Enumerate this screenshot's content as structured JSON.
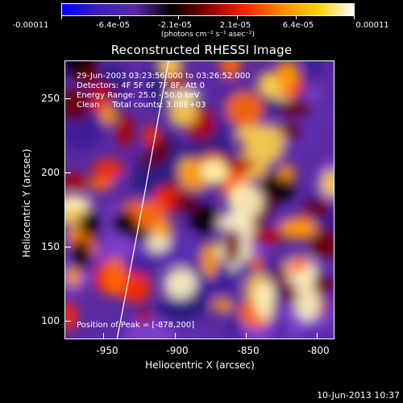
{
  "colorbar": {
    "tick_labels": [
      "-0.00011",
      "-6.4e-05",
      "-2.1e-05",
      "2.1e-05",
      "6.4e-05",
      "0.00011"
    ],
    "units": "(photons cm⁻² s⁻¹ asec⁻²)"
  },
  "title": "Reconstructed RHESSI Image",
  "info": {
    "time_range": "29-Jun-2003 03:23:56.000 to 03:26:52.000",
    "detectors": "Detectors: 4F 5F 6F 7F 8F, Att 0",
    "energy_range": "Energy Range: 25.0 - 50.0 keV",
    "clean_counts": "Clean     Total counts: 3.08E+03"
  },
  "peak_label": "Position of Peak = [-878,200]",
  "axes": {
    "x_title": "Heliocentric X (arcsec)",
    "y_title": "Heliocentric Y (arcsec)",
    "x_ticks": [
      "-950",
      "-900",
      "-850",
      "-800"
    ],
    "y_ticks": [
      "250",
      "200",
      "150",
      "100"
    ]
  },
  "timestamp": "10-Jun-2013 10:37",
  "colors": {
    "colormap": [
      "#0000ff",
      "#3a1fb8",
      "#5a2aa0",
      "#000000",
      "#8a0000",
      "#ff2200",
      "#ff8800",
      "#ffd000",
      "#ffffff"
    ],
    "limb": "#ffffff",
    "text": "#ffffff"
  }
}
